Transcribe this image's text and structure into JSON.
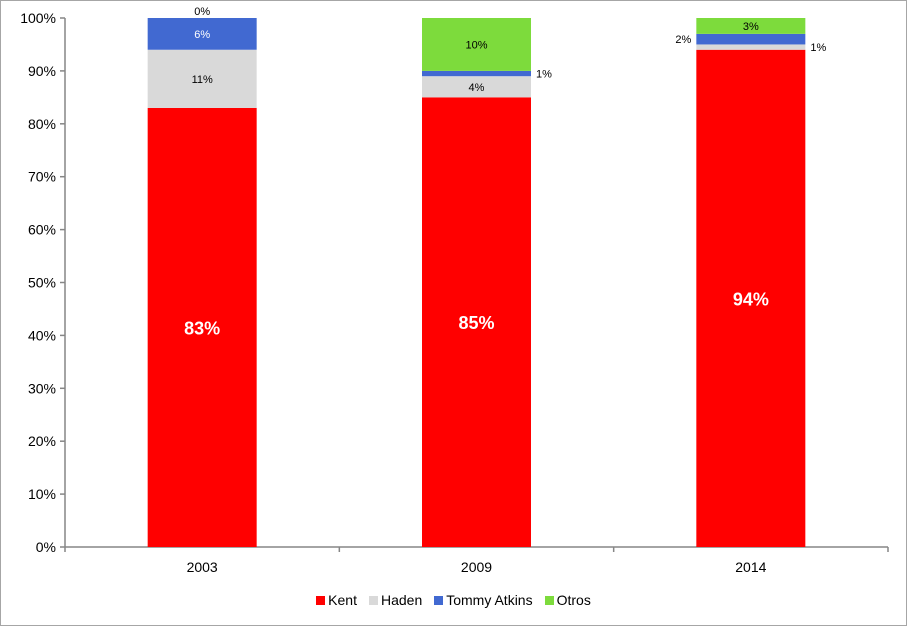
{
  "chart_data": {
    "type": "bar",
    "stacked": true,
    "percent": true,
    "title": "",
    "xlabel": "",
    "ylabel": "",
    "categories": [
      "2003",
      "2009",
      "2014"
    ],
    "ylim": [
      0,
      100
    ],
    "yticks": [
      "0%",
      "10%",
      "20%",
      "30%",
      "40%",
      "50%",
      "60%",
      "70%",
      "80%",
      "90%",
      "100%"
    ],
    "series": [
      {
        "name": "Kent",
        "color": "#ff0000",
        "values": [
          83,
          85,
          94
        ],
        "labels": [
          "83%",
          "85%",
          "94%"
        ]
      },
      {
        "name": "Haden",
        "color": "#d9d9d9",
        "values": [
          11,
          4,
          1
        ],
        "labels": [
          "11%",
          "4%",
          "1%"
        ]
      },
      {
        "name": "Tommy Atkins",
        "color": "#4169d1",
        "values": [
          6,
          1,
          2
        ],
        "labels": [
          "6%",
          "1%",
          "2%"
        ]
      },
      {
        "name": "Otros",
        "color": "#7ddb3c",
        "values": [
          0,
          10,
          3
        ],
        "labels": [
          "0%",
          "10%",
          "3%"
        ]
      }
    ],
    "legend_position": "bottom",
    "grid": false
  }
}
